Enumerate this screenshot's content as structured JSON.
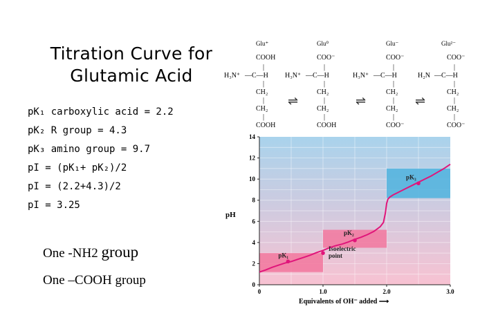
{
  "title": {
    "line1": "Titration Curve for",
    "line2": "Glutamic Acid"
  },
  "pk_list": [
    "pK₁ carboxylic acid = 2.2",
    "pK₂ R group = 4.3",
    "pK₃ amino group = 9.7",
    "pI = (pK₁+ pK₂)/2",
    "pI = (2.2+4.3)/2",
    "pI = 3.25"
  ],
  "notes": {
    "nh2_prefix": "One -NH",
    "nh2_sub": "2",
    "nh2_word": "group",
    "cooh": "One –COOH group"
  },
  "species": [
    "Glu⁺",
    "Glu⁰",
    "Glu⁻",
    "Glu²⁻"
  ],
  "structure": {
    "top": [
      "COOH",
      "COO⁻",
      "COO⁻",
      "COO⁻"
    ],
    "amine": [
      "H₃N⁺",
      "H₃N⁺",
      "H₃N⁺",
      "H₂N"
    ],
    "alpha": [
      "—C—H",
      "—C—H",
      "—C—H",
      "—C—H"
    ],
    "ch2": "CH₂",
    "side": [
      "COOH",
      "COOH",
      "COO⁻",
      "COO⁻"
    ],
    "bond": "|"
  },
  "equilibrium_arrow": "⇌",
  "colors": {
    "band_blue": "#4fb3de",
    "band_pink": "#f2779d",
    "curve": "#e0157a",
    "bg_top": "#a9d3ec",
    "bg_bottom": "#f8c2d2"
  },
  "chart_data": {
    "type": "line",
    "xlabel": "Equivalents of OH⁻ added",
    "ylabel": "pH",
    "xlim": [
      0,
      3.0
    ],
    "ylim": [
      0,
      14
    ],
    "x_ticks": [
      "0",
      "1.0",
      "2.0",
      "3.0"
    ],
    "y_ticks": [
      "0",
      "2",
      "4",
      "6",
      "8",
      "10",
      "12",
      "14"
    ],
    "series": [
      {
        "x": [
          0,
          0.1,
          0.2,
          0.3,
          0.4,
          0.5,
          0.6,
          0.7,
          0.8,
          0.9,
          1.0,
          1.1,
          1.2,
          1.3,
          1.4,
          1.5,
          1.6,
          1.7,
          1.8,
          1.9,
          1.95,
          1.98,
          2.0,
          2.02,
          2.05,
          2.1,
          2.2,
          2.3,
          2.4,
          2.5,
          2.6,
          2.7,
          2.8,
          2.9,
          3.0
        ],
        "y": [
          1.2,
          1.4,
          1.65,
          1.85,
          2.05,
          2.2,
          2.4,
          2.6,
          2.8,
          3.05,
          3.25,
          3.5,
          3.7,
          3.85,
          4.05,
          4.3,
          4.5,
          4.75,
          5.05,
          5.5,
          5.9,
          6.8,
          7.7,
          8.1,
          8.3,
          8.5,
          8.8,
          9.1,
          9.4,
          9.7,
          10.0,
          10.3,
          10.65,
          11.0,
          11.4
        ]
      }
    ],
    "bands": [
      {
        "x": [
          0,
          1.0
        ],
        "y": [
          1.2,
          3.0
        ],
        "color": "pink",
        "label": "pK₁"
      },
      {
        "x": [
          1.0,
          2.0
        ],
        "y": [
          3.5,
          5.2
        ],
        "color": "pink",
        "label": "pK₂"
      },
      {
        "x": [
          2.0,
          3.0
        ],
        "y": [
          8.2,
          11.0
        ],
        "color": "blue",
        "label": "pK₃"
      }
    ],
    "markers": [
      {
        "x": 0.45,
        "y": 2.2,
        "label": "pK₁"
      },
      {
        "x": 1.0,
        "y": 3.0,
        "label": "Isoelectric point"
      },
      {
        "x": 1.5,
        "y": 4.2,
        "label": "pK₂"
      },
      {
        "x": 2.5,
        "y": 9.6,
        "label": "pK₃"
      }
    ],
    "grid": true
  }
}
